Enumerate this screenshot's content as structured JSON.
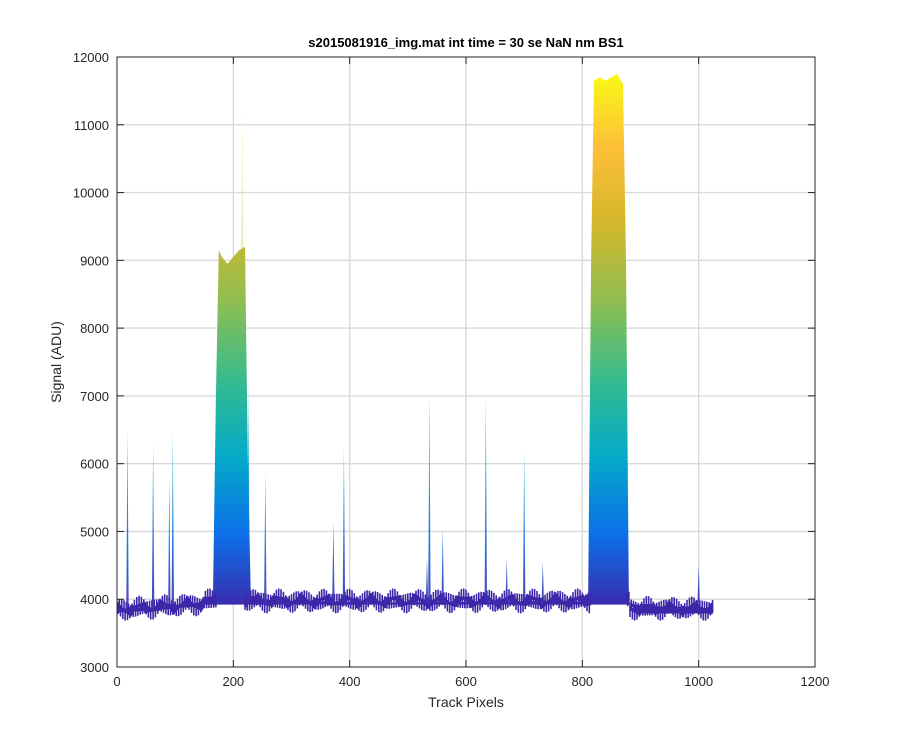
{
  "chart_data": {
    "type": "area",
    "title": "s2015081916_img.mat int time = 30 se  NaN nm BS1",
    "xlabel": "Track Pixels",
    "ylabel": "Signal (ADU)",
    "xlim": [
      0,
      1200
    ],
    "ylim": [
      3000,
      12000
    ],
    "xticks": [
      0,
      200,
      400,
      600,
      800,
      1000,
      1200
    ],
    "yticks": [
      3000,
      4000,
      5000,
      6000,
      7000,
      8000,
      9000,
      10000,
      11000,
      12000
    ],
    "grid": true,
    "colormap": [
      "#3e26a8",
      "#0c6fe8",
      "#03aac9",
      "#36bb8d",
      "#8dbe52",
      "#d2b72b",
      "#fdbf38",
      "#f9fb15"
    ],
    "series": [
      {
        "x": [
          0,
          20,
          60,
          90,
          100,
          150,
          165,
          170,
          175,
          180,
          190,
          200,
          210,
          220,
          225,
          230,
          260,
          300,
          400,
          500,
          530,
          560,
          600,
          630,
          700,
          780,
          800,
          810,
          815,
          820,
          830,
          840,
          850,
          860,
          870,
          875,
          880,
          900,
          1000,
          1025
        ],
        "values": [
          3850,
          3870,
          3880,
          3900,
          3910,
          3960,
          4050,
          7000,
          9150,
          9050,
          8950,
          9050,
          9150,
          9200,
          6000,
          4050,
          3990,
          3980,
          3960,
          3950,
          3960,
          3960,
          3960,
          3960,
          3970,
          3980,
          3960,
          4100,
          9000,
          11650,
          11700,
          11650,
          11700,
          11750,
          11600,
          9000,
          3950,
          3900,
          3880,
          3860
        ]
      }
    ],
    "spikes": [
      {
        "x": 18,
        "value": 6500
      },
      {
        "x": 62,
        "value": 6300
      },
      {
        "x": 90,
        "value": 5800
      },
      {
        "x": 96,
        "value": 6450
      },
      {
        "x": 215,
        "value": 11300
      },
      {
        "x": 226,
        "value": 7150
      },
      {
        "x": 255,
        "value": 5850
      },
      {
        "x": 372,
        "value": 5150
      },
      {
        "x": 390,
        "value": 6250
      },
      {
        "x": 533,
        "value": 4600
      },
      {
        "x": 537,
        "value": 7050
      },
      {
        "x": 560,
        "value": 5050
      },
      {
        "x": 634,
        "value": 7000
      },
      {
        "x": 670,
        "value": 4600
      },
      {
        "x": 700,
        "value": 6200
      },
      {
        "x": 732,
        "value": 4550
      },
      {
        "x": 1000,
        "value": 4500
      }
    ]
  }
}
